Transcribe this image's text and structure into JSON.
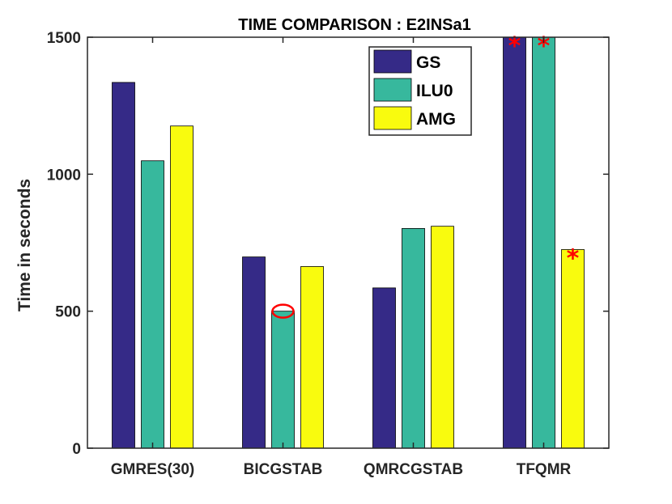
{
  "chart_data": {
    "type": "bar",
    "title": "TIME COMPARISON : E2INSa1",
    "xlabel": "",
    "ylabel": "Time in seconds",
    "categories": [
      "GMRES(30)",
      "BICGSTAB",
      "QMRCGSTAB",
      "TFQMR"
    ],
    "series": [
      {
        "name": "GS",
        "color": "#352A87",
        "values": [
          1335,
          698,
          585,
          1500
        ]
      },
      {
        "name": "ILU0",
        "color": "#37B89D",
        "values": [
          1049,
          500,
          802,
          1500
        ]
      },
      {
        "name": "AMG",
        "color": "#F9FB0E",
        "values": [
          1176,
          663,
          810,
          725
        ]
      }
    ],
    "ylim": [
      0,
      1500
    ],
    "yticks": [
      0,
      500,
      1000,
      1500
    ],
    "grid": false,
    "legend_position": "top-right",
    "annotations": [
      {
        "type": "star",
        "series": "GS",
        "category": "TFQMR",
        "color": "#FF0000"
      },
      {
        "type": "star",
        "series": "ILU0",
        "category": "TFQMR",
        "color": "#FF0000"
      },
      {
        "type": "star",
        "series": "AMG",
        "category": "TFQMR",
        "color": "#FF0000"
      },
      {
        "type": "circle",
        "series": "ILU0",
        "category": "BICGSTAB",
        "color": "#FF0000"
      }
    ],
    "star_glyph": "*"
  }
}
